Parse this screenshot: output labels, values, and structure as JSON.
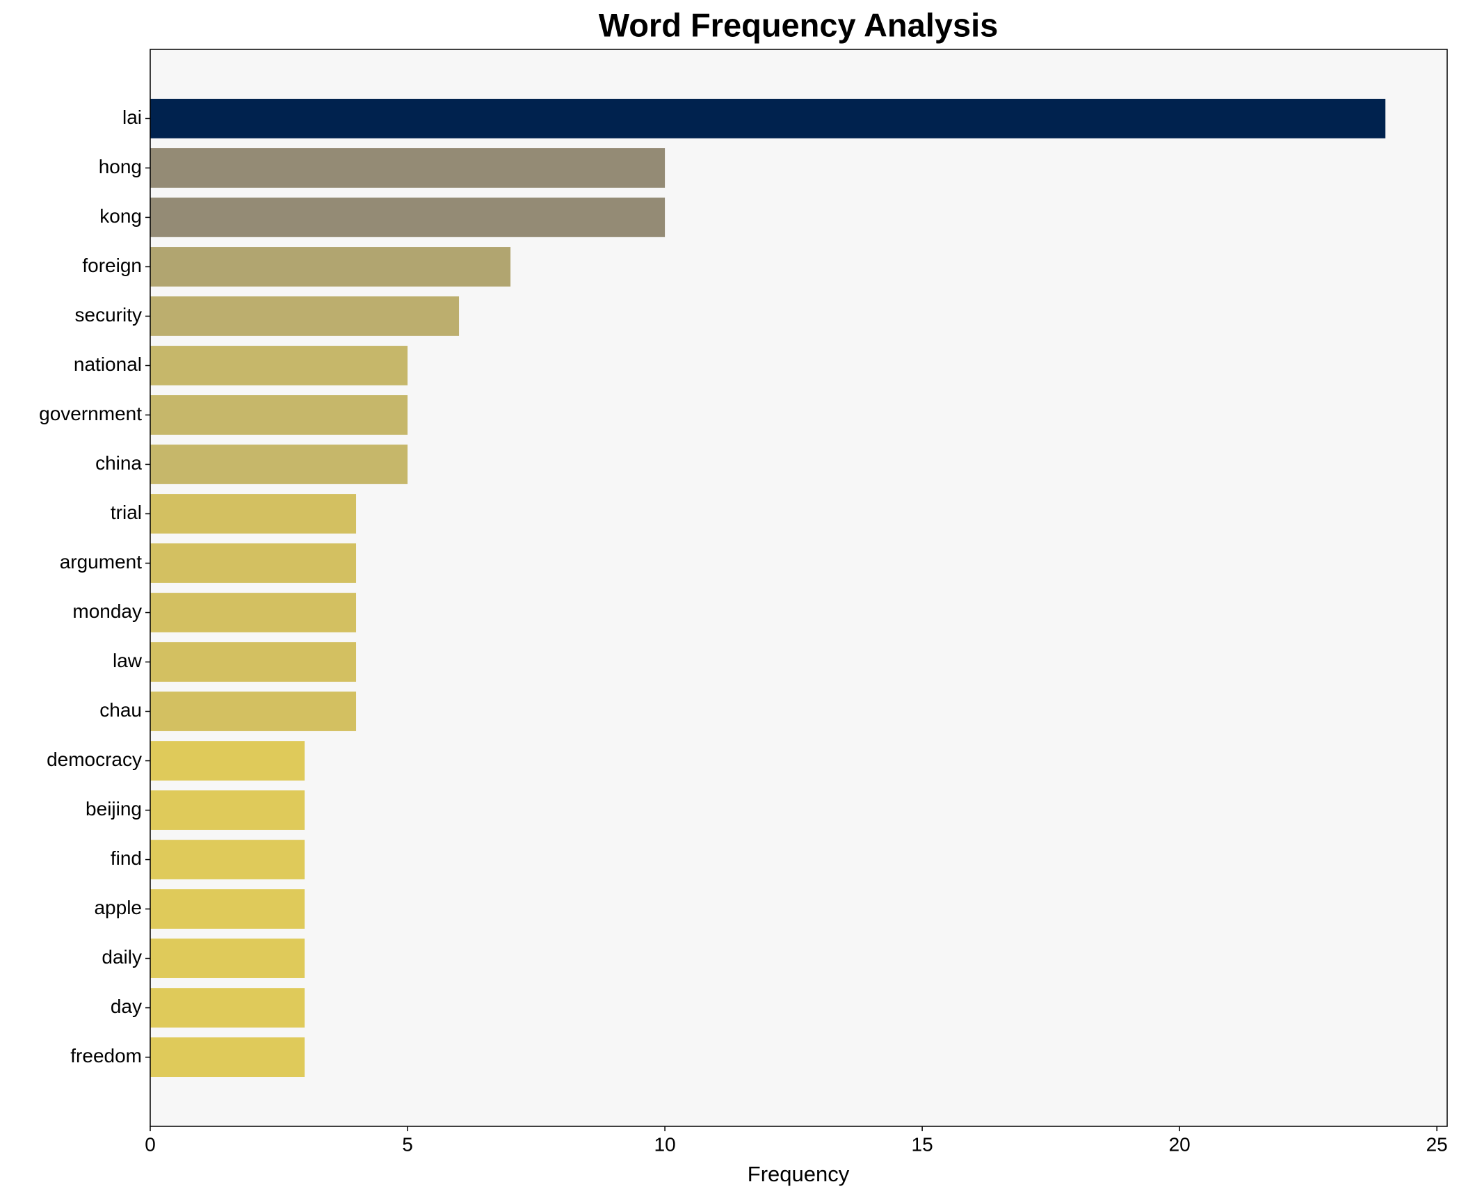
{
  "chart_data": {
    "type": "barh",
    "title": "Word Frequency Analysis",
    "x_label": "Frequency",
    "categories": [
      "lai",
      "hong",
      "kong",
      "foreign",
      "security",
      "national",
      "government",
      "china",
      "trial",
      "argument",
      "monday",
      "law",
      "chau",
      "democracy",
      "beijing",
      "find",
      "apple",
      "daily",
      "day",
      "freedom"
    ],
    "values": [
      24,
      10,
      10,
      7,
      6,
      5,
      5,
      5,
      4,
      4,
      4,
      4,
      4,
      3,
      3,
      3,
      3,
      3,
      3,
      3
    ],
    "colors": [
      "#00224e",
      "#948b75",
      "#948b75",
      "#b1a570",
      "#bcae6e",
      "#c6b76a",
      "#c6b76a",
      "#c6b76a",
      "#d3c061",
      "#d3c061",
      "#d3c061",
      "#d3c061",
      "#d3c061",
      "#dfca5a",
      "#dfca5a",
      "#dfca5a",
      "#dfca5a",
      "#dfca5a",
      "#dfca5a",
      "#dfca5a"
    ],
    "xlim": [
      0,
      25.2
    ],
    "xticks": [
      0,
      5,
      10,
      15,
      20,
      25
    ],
    "background": "#f7f7f7"
  }
}
